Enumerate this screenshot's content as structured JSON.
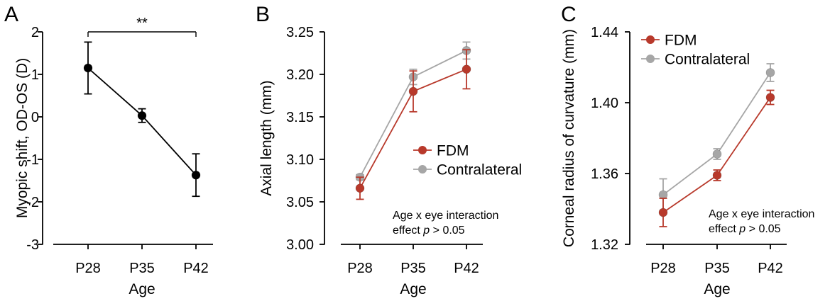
{
  "chart_data": [
    {
      "panel": "A",
      "type": "line",
      "xlabel": "Age",
      "ylabel": "Myopic shift, OD-OS (D)",
      "categories": [
        "P28",
        "P35",
        "P42"
      ],
      "ylim": [
        -3,
        2
      ],
      "yticks": [
        "2",
        "1",
        "0",
        "-1",
        "-2",
        "-3"
      ],
      "series": [
        {
          "name": "Myopic shift",
          "color": "#000000",
          "values": [
            1.15,
            0.03,
            -1.37
          ],
          "errors": [
            0.61,
            0.16,
            0.5
          ]
        }
      ],
      "significance": {
        "label": "**",
        "from": "P28",
        "to": "P42"
      }
    },
    {
      "panel": "B",
      "type": "line",
      "xlabel": "Age",
      "ylabel": "Axial length (mm)",
      "categories": [
        "P28",
        "P35",
        "P42"
      ],
      "ylim": [
        3.0,
        3.25
      ],
      "yticks": [
        "3.25",
        "3.20",
        "3.15",
        "3.10",
        "3.05",
        "3.00"
      ],
      "series": [
        {
          "name": "FDM",
          "color": "#b8392b",
          "values": [
            3.066,
            3.18,
            3.206
          ],
          "errors": [
            0.013,
            0.024,
            0.023
          ]
        },
        {
          "name": "Contralateral",
          "color": "#a6a6a6",
          "values": [
            3.079,
            3.197,
            3.228
          ],
          "errors": [
            0.003,
            0.009,
            0.01
          ]
        }
      ],
      "legend": [
        "FDM",
        "Contralateral"
      ],
      "annotation": {
        "line1": "Age x eye interaction",
        "line2_prefix": "effect ",
        "line2_p": "p",
        "line2_suffix": " > 0.05"
      }
    },
    {
      "panel": "C",
      "type": "line",
      "xlabel": "Age",
      "ylabel": "Corneal radius of curvature (mm)",
      "categories": [
        "P28",
        "P35",
        "P42"
      ],
      "ylim": [
        1.32,
        1.44
      ],
      "yticks": [
        "1.44",
        "1.40",
        "1.36",
        "1.32"
      ],
      "series": [
        {
          "name": "FDM",
          "color": "#b8392b",
          "values": [
            1.338,
            1.359,
            1.403
          ],
          "errors": [
            0.008,
            0.003,
            0.004
          ]
        },
        {
          "name": "Contralateral",
          "color": "#a6a6a6",
          "values": [
            1.348,
            1.371,
            1.417
          ],
          "errors": [
            0.009,
            0.003,
            0.005
          ]
        }
      ],
      "legend": [
        "FDM",
        "Contralateral"
      ],
      "annotation": {
        "line1": "Age x eye interaction",
        "line2_prefix": "effect ",
        "line2_p": "p",
        "line2_suffix": " > 0.05"
      }
    }
  ]
}
